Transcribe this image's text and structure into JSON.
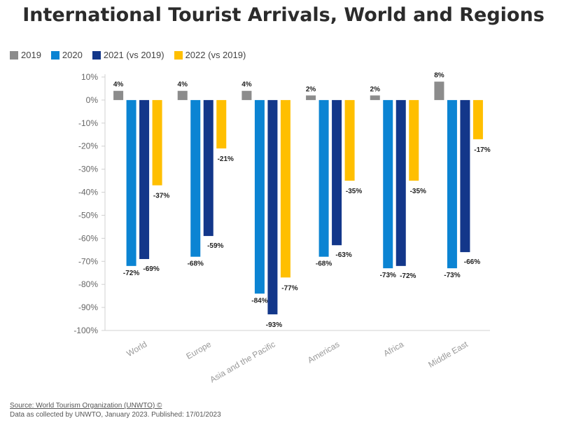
{
  "title": "International Tourist Arrivals, World and Regions",
  "legend": [
    {
      "label": "2019",
      "color": "#8c8c8c"
    },
    {
      "label": "2020",
      "color": "#0b84d3"
    },
    {
      "label": "2021 (vs 2019)",
      "color": "#13378a"
    },
    {
      "label": "2022 (vs 2019)",
      "color": "#ffbf00"
    }
  ],
  "footer": {
    "source": "Source: World Tourism Organization (UNWTO) ©",
    "note": "Data as collected by UNWTO, January 2023. Published: 17/01/2023"
  },
  "chart_data": {
    "type": "bar",
    "title": "International Tourist Arrivals, World and Regions",
    "xlabel": "",
    "ylabel": "",
    "ylim": [
      -100,
      10
    ],
    "yticks": [
      "10%",
      "0%",
      "-10%",
      "-20%",
      "-30%",
      "-40%",
      "-50%",
      "-60%",
      "-70%",
      "-80%",
      "-90%",
      "-100%"
    ],
    "categories": [
      "World",
      "Europe",
      "Asia and the Pacific",
      "Americas",
      "Africa",
      "Middle East"
    ],
    "series": [
      {
        "name": "2019",
        "color": "#8c8c8c",
        "values": [
          4,
          4,
          4,
          2,
          2,
          8
        ],
        "labels": [
          "4%",
          "4%",
          "4%",
          "2%",
          "2%",
          "8%"
        ]
      },
      {
        "name": "2020",
        "color": "#0b84d3",
        "values": [
          -72,
          -68,
          -84,
          -68,
          -73,
          -73
        ],
        "labels": [
          "-72%",
          "-68%",
          "-84%",
          "-68%",
          "-73%",
          "-73%"
        ]
      },
      {
        "name": "2021 (vs 2019)",
        "color": "#13378a",
        "values": [
          -69,
          -59,
          -93,
          -63,
          -72,
          -66
        ],
        "labels": [
          "-69%",
          "-59%",
          "-93%",
          "-63%",
          "-72%",
          "-66%"
        ]
      },
      {
        "name": "2022 (vs 2019)",
        "color": "#ffbf00",
        "values": [
          -37,
          -21,
          -77,
          -35,
          -35,
          -17
        ],
        "labels": [
          "-37%",
          "-21%",
          "-77%",
          "-35%",
          "-35%",
          "-17%"
        ]
      }
    ],
    "grid": false,
    "legend_position": "top-left"
  }
}
